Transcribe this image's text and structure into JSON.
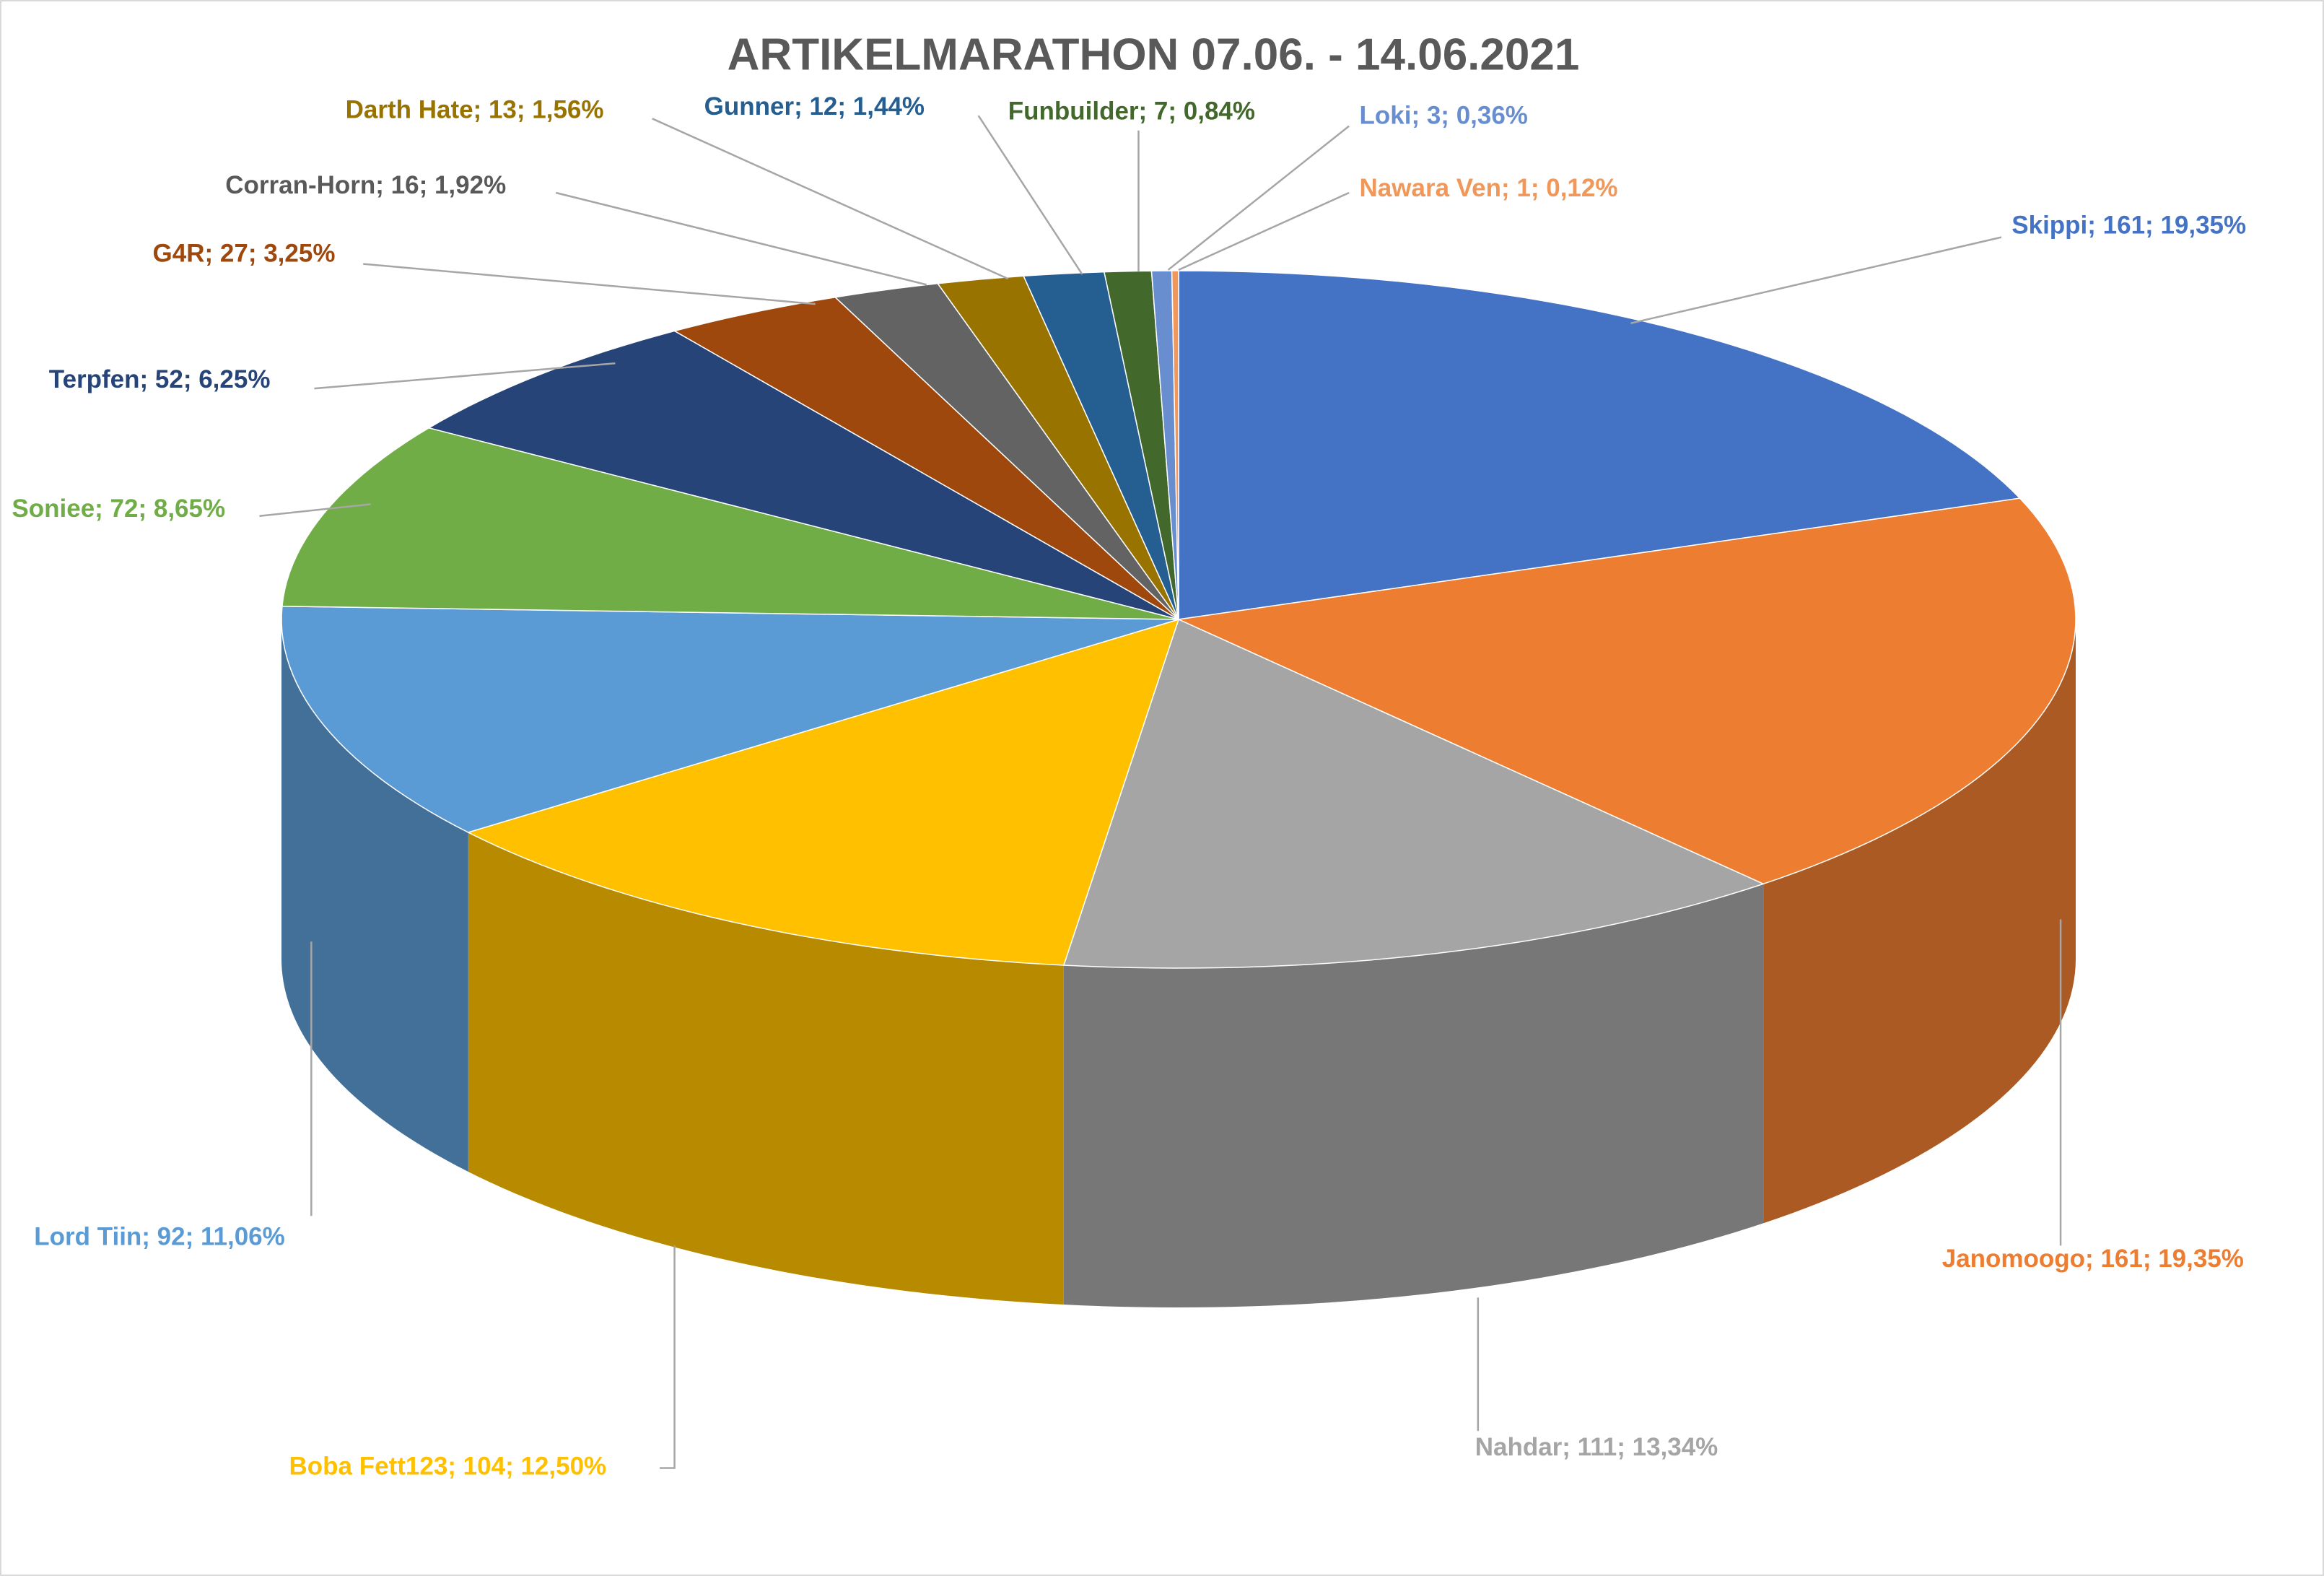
{
  "chart_data": {
    "type": "pie3d",
    "title": "ARTIKELMARATHON 07.06. - 14.06.2021",
    "values": [
      161,
      161,
      111,
      104,
      92,
      72,
      52,
      27,
      16,
      13,
      12,
      7,
      3,
      1
    ],
    "value_labels": [
      "Skippi; 161; 19,35%",
      "Janomoogo; 161; 19,35%",
      "Nahdar; 111; 13,34%",
      "Boba Fett123; 104; 12,50%",
      "Lord Tiin; 92; 11,06%",
      "Soniee; 72; 8,65%",
      "Terpfen; 52; 6,25%",
      "G4R; 27; 3,25%",
      "Corran-Horn; 16; 1,92%",
      "Darth Hate; 13; 1,56%",
      "Gunner; 12; 1,44%",
      "Funbuilder; 7; 0,84%",
      "Loki; 3; 0,36%",
      "Nawara Ven; 1; 0,12%"
    ],
    "colors": [
      "#4472c4",
      "#ed7d31",
      "#a5a5a5",
      "#ffc000",
      "#5b9bd5",
      "#70ad47",
      "#264478",
      "#9e480e",
      "#636363",
      "#997300",
      "#255e91",
      "#43682b",
      "#698ed0",
      "#f1975a"
    ]
  }
}
